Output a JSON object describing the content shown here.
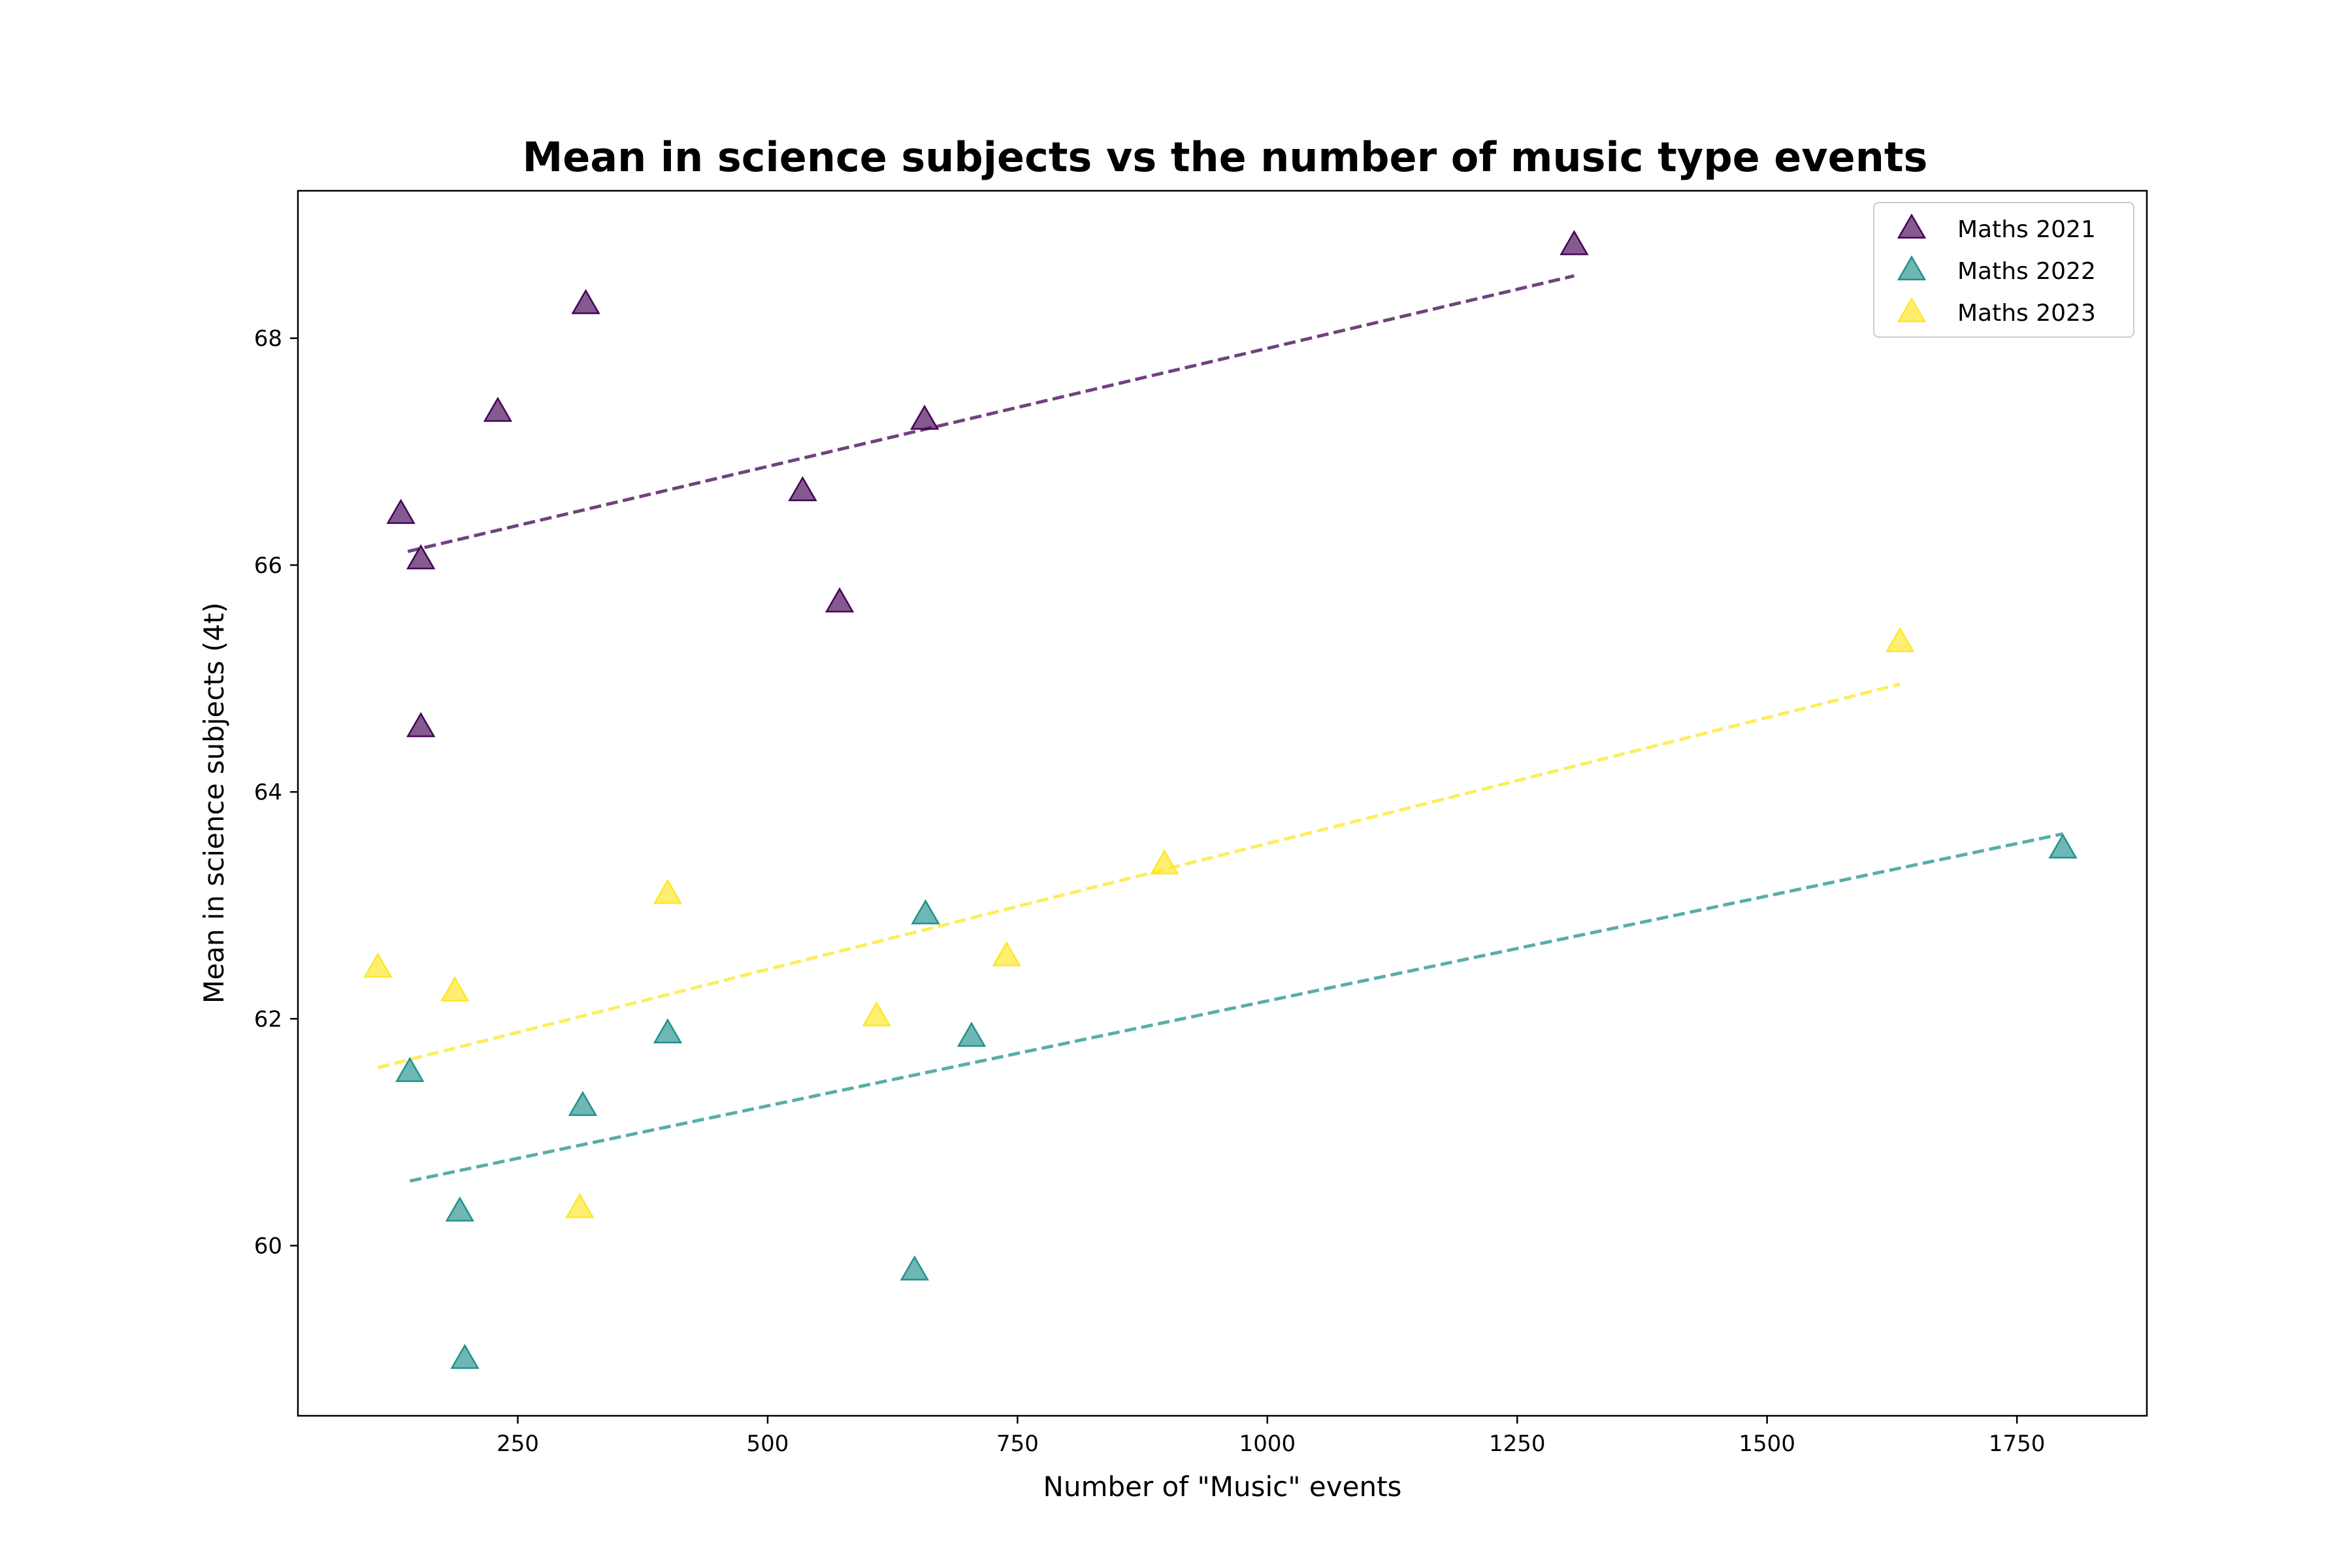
{
  "chart_data": {
    "type": "scatter",
    "title": "Mean in science subjects vs the number of music type events",
    "xlabel": "Number of \"Music\" events",
    "ylabel": "Mean in science subjects (4t)",
    "xlim": [
      30,
      1880
    ],
    "ylim": [
      58.5,
      69.3
    ],
    "xticks": [
      250,
      500,
      750,
      1000,
      1250,
      1500,
      1750
    ],
    "yticks": [
      60,
      62,
      64,
      66,
      68
    ],
    "grid": false,
    "legend_position": "top-right",
    "marker": "triangle",
    "trendline_style": "dashed",
    "series": [
      {
        "name": "Maths 2021",
        "color": "#440154",
        "points": [
          [
            133,
            66.45
          ],
          [
            153,
            66.05
          ],
          [
            153,
            64.57
          ],
          [
            230,
            67.35
          ],
          [
            318,
            68.3
          ],
          [
            535,
            66.65
          ],
          [
            572,
            65.67
          ],
          [
            657,
            67.28
          ],
          [
            1307,
            68.82
          ]
        ],
        "trendline": [
          [
            140,
            66.12
          ],
          [
            1307,
            68.55
          ]
        ]
      },
      {
        "name": "Maths 2022",
        "color": "#21918c",
        "points": [
          [
            142,
            61.53
          ],
          [
            192,
            60.3
          ],
          [
            197,
            59.0
          ],
          [
            315,
            61.23
          ],
          [
            400,
            61.87
          ],
          [
            647,
            59.78
          ],
          [
            658,
            62.92
          ],
          [
            704,
            61.84
          ],
          [
            1796,
            63.5
          ]
        ],
        "trendline": [
          [
            142,
            60.57
          ],
          [
            1796,
            63.63
          ]
        ]
      },
      {
        "name": "Maths 2023",
        "color": "#fde725",
        "points": [
          [
            110,
            62.45
          ],
          [
            187,
            62.24
          ],
          [
            312,
            60.33
          ],
          [
            400,
            63.1
          ],
          [
            609,
            62.02
          ],
          [
            739,
            62.55
          ],
          [
            897,
            63.36
          ],
          [
            1633,
            65.32
          ]
        ],
        "trendline": [
          [
            110,
            61.57
          ],
          [
            1633,
            64.95
          ]
        ]
      }
    ]
  }
}
